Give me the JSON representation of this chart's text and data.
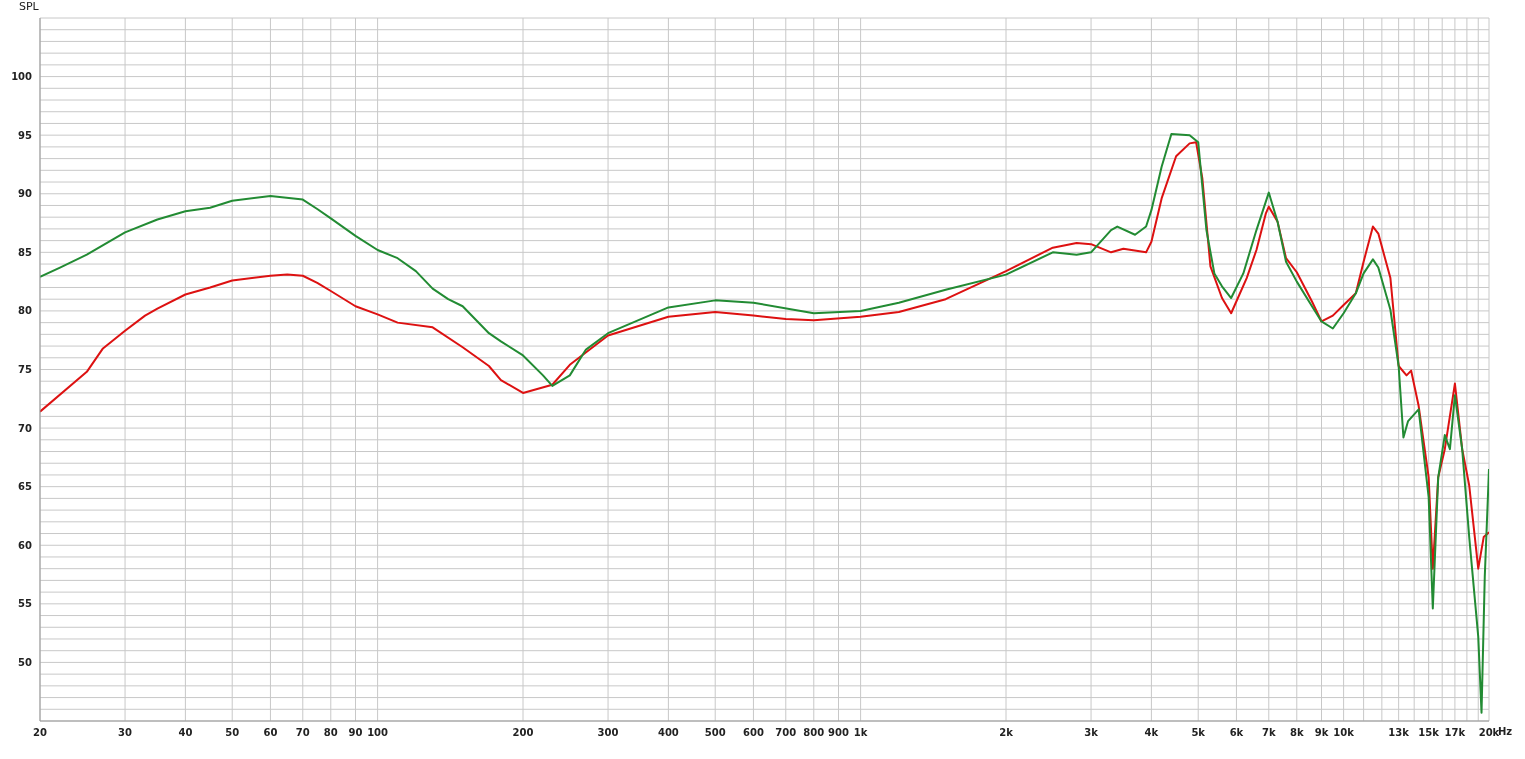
{
  "chart_data": {
    "type": "line",
    "ylabel": "SPL",
    "log": "x",
    "grid": true,
    "legend": false,
    "marker": "none",
    "line_style": "solid",
    "xlim": [
      20,
      20000
    ],
    "ylim": [
      45,
      105
    ],
    "xticks": [
      20,
      30,
      40,
      50,
      60,
      70,
      80,
      90,
      100,
      200,
      300,
      400,
      500,
      600,
      700,
      800,
      900,
      {
        "value": 1000,
        "label": "1k"
      },
      {
        "value": 2000,
        "label": "2k"
      },
      {
        "value": 3000,
        "label": "3k"
      },
      {
        "value": 4000,
        "label": "4k"
      },
      {
        "value": 5000,
        "label": "5k"
      },
      {
        "value": 6000,
        "label": "6k"
      },
      {
        "value": 7000,
        "label": "7k"
      },
      {
        "value": 8000,
        "label": "8k"
      },
      {
        "value": 9000,
        "label": "9k"
      },
      {
        "value": 10000,
        "label": "10k"
      },
      {
        "value": 11000,
        "label": null
      },
      {
        "value": 12000,
        "label": null
      },
      {
        "value": 13000,
        "label": "13k"
      },
      {
        "value": 14000,
        "label": null
      },
      {
        "value": 15000,
        "label": "15k"
      },
      {
        "value": 16000,
        "label": null
      },
      {
        "value": 17000,
        "label": "17k"
      },
      {
        "value": 18000,
        "label": null
      },
      {
        "value": 19000,
        "label": null
      },
      {
        "value": 20000,
        "label": "20k"
      }
    ],
    "xlabel": "Hz",
    "yticks": [
      {
        "value": 45,
        "label": null
      },
      {
        "value": 46,
        "label": null
      },
      {
        "value": 47,
        "label": null
      },
      {
        "value": 48,
        "label": null
      },
      {
        "value": 49,
        "label": null
      },
      50,
      {
        "value": 51,
        "label": null
      },
      {
        "value": 52,
        "label": null
      },
      {
        "value": 53,
        "label": null
      },
      {
        "value": 54,
        "label": null
      },
      55,
      {
        "value": 56,
        "label": null
      },
      {
        "value": 57,
        "label": null
      },
      {
        "value": 58,
        "label": null
      },
      {
        "value": 59,
        "label": null
      },
      60,
      {
        "value": 61,
        "label": null
      },
      {
        "value": 62,
        "label": null
      },
      {
        "value": 63,
        "label": null
      },
      {
        "value": 64,
        "label": null
      },
      65,
      {
        "value": 66,
        "label": null
      },
      {
        "value": 67,
        "label": null
      },
      {
        "value": 68,
        "label": null
      },
      {
        "value": 69,
        "label": null
      },
      70,
      {
        "value": 71,
        "label": null
      },
      {
        "value": 72,
        "label": null
      },
      {
        "value": 73,
        "label": null
      },
      {
        "value": 74,
        "label": null
      },
      75,
      {
        "value": 76,
        "label": null
      },
      {
        "value": 77,
        "label": null
      },
      {
        "value": 78,
        "label": null
      },
      {
        "value": 79,
        "label": null
      },
      80,
      {
        "value": 81,
        "label": null
      },
      {
        "value": 82,
        "label": null
      },
      {
        "value": 83,
        "label": null
      },
      {
        "value": 84,
        "label": null
      },
      85,
      {
        "value": 86,
        "label": null
      },
      {
        "value": 87,
        "label": null
      },
      {
        "value": 88,
        "label": null
      },
      {
        "value": 89,
        "label": null
      },
      90,
      {
        "value": 91,
        "label": null
      },
      {
        "value": 92,
        "label": null
      },
      {
        "value": 93,
        "label": null
      },
      {
        "value": 94,
        "label": null
      },
      95,
      {
        "value": 96,
        "label": null
      },
      {
        "value": 97,
        "label": null
      },
      {
        "value": 98,
        "label": null
      },
      {
        "value": 99,
        "label": null
      },
      100,
      {
        "value": 101,
        "label": null
      },
      {
        "value": 102,
        "label": null
      },
      {
        "value": 103,
        "label": null
      },
      {
        "value": 104,
        "label": null
      },
      {
        "value": 105,
        "label": null
      }
    ],
    "series": [
      {
        "color": "#dd1111",
        "x": [
          20,
          25,
          27,
          30,
          33,
          35,
          40,
          45,
          50,
          60,
          65,
          70,
          75,
          80,
          90,
          100,
          110,
          130,
          150,
          170,
          180,
          200,
          230,
          250,
          300,
          400,
          500,
          600,
          700,
          800,
          1000,
          1200,
          1500,
          2000,
          2500,
          2800,
          3000,
          3300,
          3500,
          3900,
          4000,
          4200,
          4500,
          4800,
          4950,
          5100,
          5300,
          5600,
          5850,
          6300,
          6600,
          6900,
          7000,
          7300,
          7600,
          8000,
          8600,
          9000,
          9500,
          10000,
          10600,
          11000,
          11500,
          11800,
          12500,
          13000,
          13500,
          13800,
          14300,
          15000,
          15300,
          15700,
          16200,
          17000,
          17600,
          18200,
          19000,
          19500,
          20000
        ],
        "values": [
          71.4,
          74.8,
          76.8,
          78.3,
          79.6,
          80.2,
          81.4,
          82.0,
          82.6,
          83.0,
          83.1,
          83.0,
          82.4,
          81.7,
          80.4,
          79.7,
          79.0,
          78.6,
          76.9,
          75.3,
          74.1,
          73.0,
          73.7,
          75.4,
          77.9,
          79.5,
          79.9,
          79.6,
          79.3,
          79.2,
          79.5,
          79.9,
          81.0,
          83.4,
          85.4,
          85.8,
          85.7,
          85.0,
          85.3,
          85.0,
          85.9,
          89.6,
          93.2,
          94.3,
          94.4,
          91.3,
          83.8,
          81.1,
          79.8,
          82.8,
          85.2,
          88.3,
          88.9,
          87.6,
          84.5,
          83.3,
          80.8,
          79.1,
          79.6,
          80.5,
          81.5,
          84.2,
          87.2,
          86.6,
          82.8,
          75.3,
          74.5,
          74.9,
          71.9,
          65.8,
          58.0,
          65.8,
          68.2,
          73.8,
          68.2,
          65.1,
          58.0,
          60.7,
          61.1
        ]
      },
      {
        "color": "#228b33",
        "x": [
          20,
          22,
          25,
          30,
          35,
          40,
          45,
          50,
          60,
          70,
          75,
          80,
          90,
          100,
          110,
          120,
          130,
          140,
          150,
          170,
          180,
          200,
          220,
          230,
          250,
          270,
          300,
          400,
          500,
          600,
          800,
          1000,
          1200,
          1500,
          2000,
          2500,
          2800,
          3000,
          3300,
          3400,
          3700,
          3900,
          4000,
          4200,
          4400,
          4800,
          5000,
          5200,
          5400,
          5600,
          5850,
          6200,
          6600,
          7000,
          7300,
          7600,
          8000,
          8600,
          9000,
          9500,
          10000,
          10600,
          11000,
          11500,
          11800,
          12500,
          13000,
          13300,
          13600,
          14300,
          15000,
          15300,
          15700,
          16200,
          16600,
          17000,
          17600,
          18200,
          19000,
          19300,
          19600,
          20000
        ],
        "values": [
          82.9,
          83.7,
          84.8,
          86.7,
          87.8,
          88.5,
          88.8,
          89.4,
          89.8,
          89.5,
          88.7,
          87.9,
          86.4,
          85.2,
          84.5,
          83.4,
          81.9,
          81.0,
          80.4,
          78.1,
          77.4,
          76.2,
          74.5,
          73.6,
          74.5,
          76.7,
          78.1,
          80.3,
          80.9,
          80.7,
          79.8,
          80.0,
          80.7,
          81.8,
          83.1,
          85.0,
          84.8,
          85.0,
          86.9,
          87.2,
          86.5,
          87.2,
          88.6,
          92.3,
          95.1,
          95.0,
          94.4,
          86.9,
          83.2,
          82.1,
          81.1,
          83.2,
          86.9,
          90.1,
          87.6,
          84.2,
          82.5,
          80.4,
          79.1,
          78.5,
          79.8,
          81.5,
          83.2,
          84.4,
          83.7,
          80.1,
          75.3,
          69.2,
          70.6,
          71.6,
          64.1,
          54.6,
          65.8,
          69.4,
          68.2,
          72.8,
          68.2,
          60.7,
          52.2,
          45.7,
          57.3,
          66.5
        ]
      }
    ]
  }
}
